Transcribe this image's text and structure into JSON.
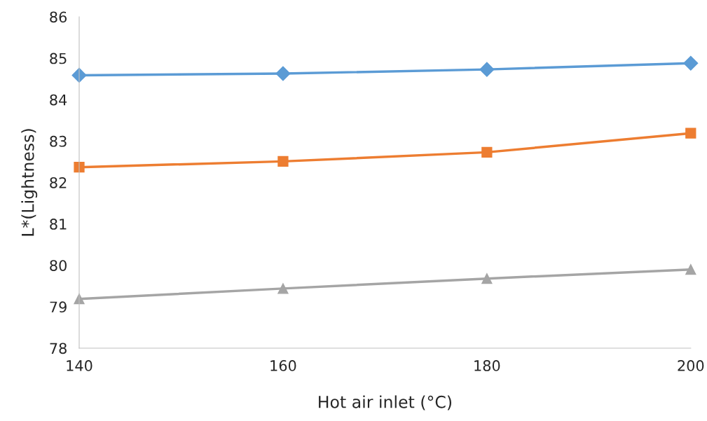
{
  "chart_data": {
    "type": "line",
    "xlabel": "Hot air inlet (°C)",
    "ylabel": "L*(Lightness)",
    "x": [
      140,
      160,
      180,
      200
    ],
    "series": [
      {
        "color": "#5b9bd5",
        "marker": "diamond",
        "values": [
          84.59,
          84.63,
          84.73,
          84.88
        ]
      },
      {
        "color": "#ed7d31",
        "marker": "square",
        "values": [
          82.37,
          82.51,
          82.73,
          83.19
        ]
      },
      {
        "color": "#a5a5a5",
        "marker": "triangle",
        "values": [
          79.19,
          79.44,
          79.68,
          79.9
        ]
      }
    ],
    "xlim": [
      140,
      200
    ],
    "xticks": [
      140,
      160,
      180,
      200
    ],
    "ylim": [
      78,
      86
    ],
    "yticks": [
      78,
      79,
      80,
      81,
      82,
      83,
      84,
      85,
      86
    ],
    "grid": false,
    "legend": false,
    "line_style": "solid"
  }
}
